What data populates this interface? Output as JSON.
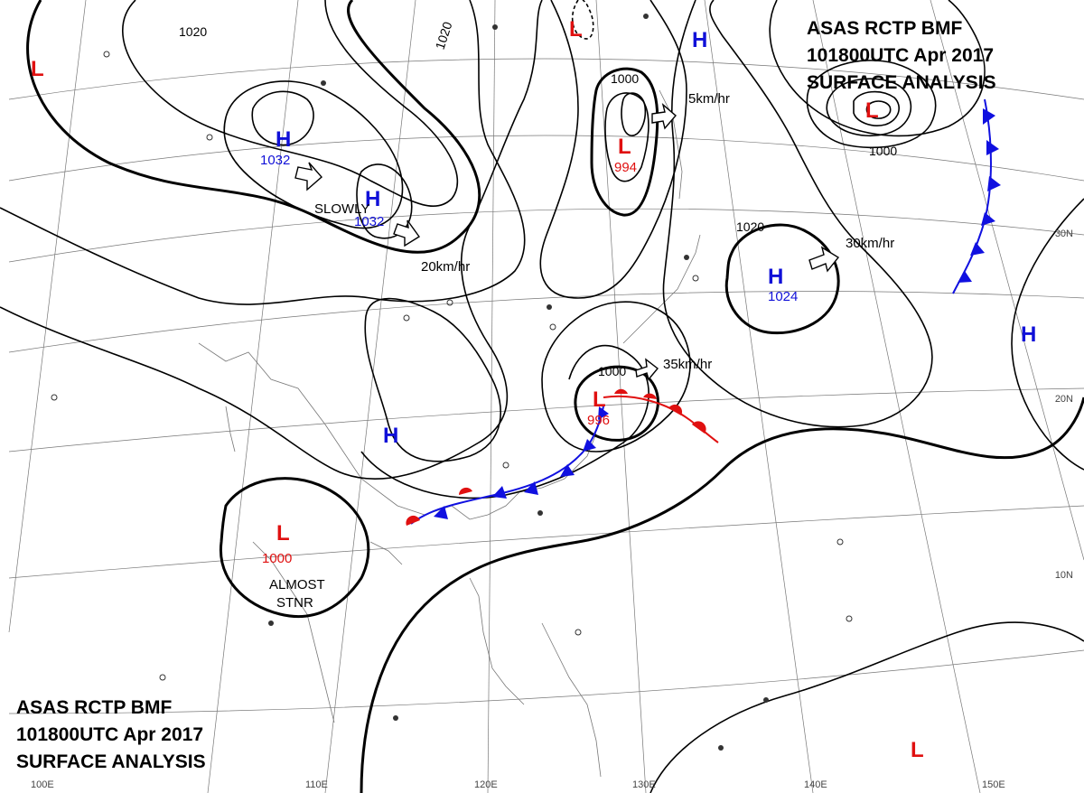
{
  "header": {
    "top_right": [
      "ASAS   RCTP   BMF",
      "101800UTC    Apr   2017",
      "SURFACE  ANALYSIS"
    ],
    "bottom_left": [
      "ASAS    RCTP   BMF",
      "101800UTC    Apr    2017",
      "SURFACE  ANALYSIS"
    ]
  },
  "colors": {
    "high": "#1010d8",
    "low": "#e01010",
    "cold_front": "#1010e0",
    "warm_front": "#e01010"
  },
  "pressure_centers": [
    {
      "type": "H",
      "value": "1032"
    },
    {
      "type": "H",
      "value": "1032"
    },
    {
      "type": "H",
      "value": "1024"
    },
    {
      "type": "H",
      "value": ""
    },
    {
      "type": "H",
      "value": ""
    },
    {
      "type": "H",
      "value": ""
    },
    {
      "type": "L",
      "value": "994"
    },
    {
      "type": "L",
      "value": "996"
    },
    {
      "type": "L",
      "value": "1000"
    },
    {
      "type": "L",
      "value": ""
    },
    {
      "type": "L",
      "value": ""
    },
    {
      "type": "L",
      "value": ""
    },
    {
      "type": "L",
      "value": ""
    }
  ],
  "isobar_labels": [
    "1020",
    "1020",
    "1000",
    "1000",
    "1020",
    "1000"
  ],
  "motion_labels": [
    "SLOWLY",
    "20km/hr",
    "5km/hr",
    "30km/hr",
    "35km/hr",
    "ALMOST",
    "STNR"
  ],
  "latitude_labels": [
    "30N",
    "20N",
    "10N"
  ],
  "longitude_labels": [
    "100E",
    "110E",
    "120E",
    "130E",
    "140E",
    "150E"
  ]
}
